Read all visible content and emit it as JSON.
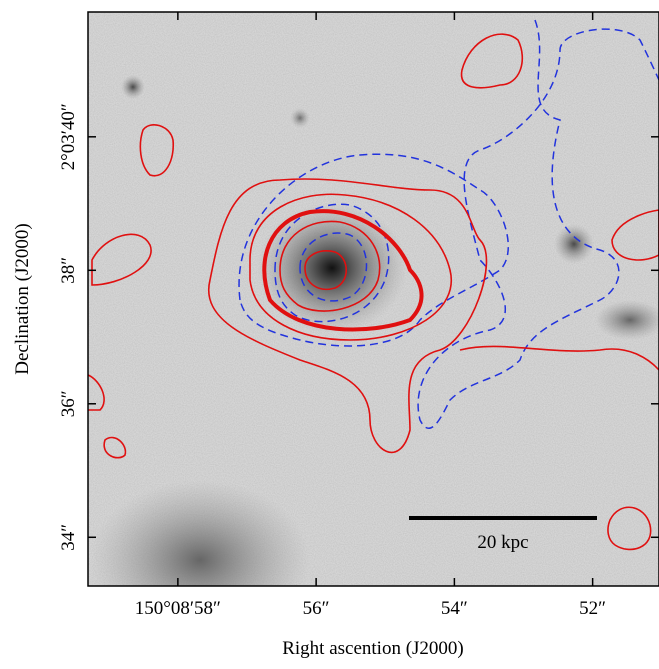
{
  "chart_data": {
    "type": "image",
    "x_label": "Right ascention (J2000)",
    "y_label": "Declination (J2000)",
    "xlim": [
      59.3,
      51.04
    ],
    "ylim": [
      33.27,
      41.87
    ],
    "xticks": [
      {
        "value": 58,
        "label": "150°08′58″"
      },
      {
        "value": 56,
        "label": "56″"
      },
      {
        "value": 54,
        "label": "54″"
      },
      {
        "value": 52,
        "label": "52″"
      }
    ],
    "yticks": [
      {
        "value": 40,
        "label": "2°03′40″"
      },
      {
        "value": 38,
        "label": "38″"
      },
      {
        "value": 36,
        "label": "36″"
      },
      {
        "value": 34,
        "label": "34″"
      }
    ]
  },
  "scale_label": "20 kpc"
}
